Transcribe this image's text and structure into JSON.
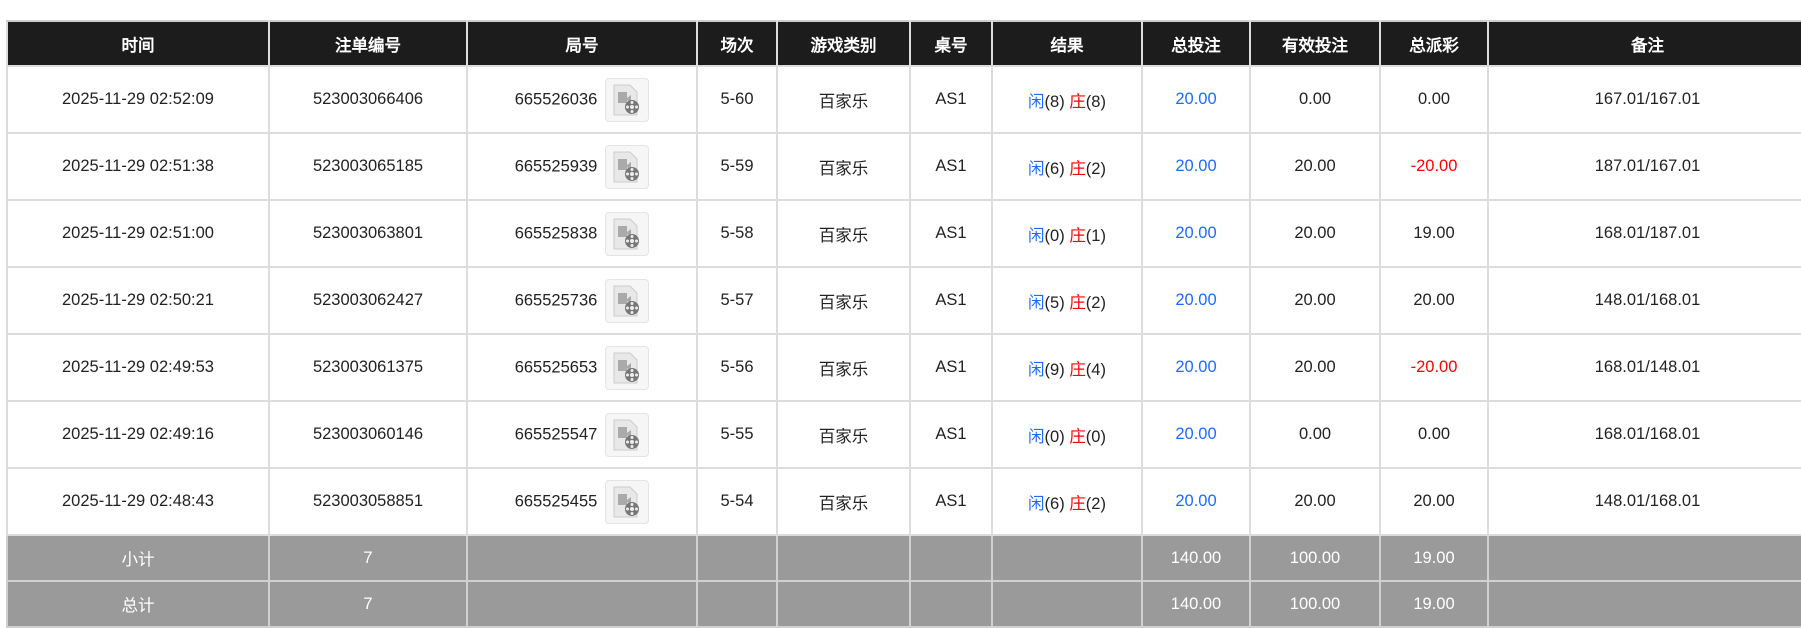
{
  "headers": [
    "时间",
    "注单编号",
    "局号",
    "场次",
    "游戏类别",
    "桌号",
    "结果",
    "总投注",
    "有效投注",
    "总派彩",
    "备注"
  ],
  "colors": {
    "header_bg": "#1c1c1c",
    "player": "#1a6cff",
    "banker": "#ff0000",
    "negative": "#ff0000",
    "summary_bg": "#9a9a9a"
  },
  "rows": [
    {
      "time": "2025-11-29 02:52:09",
      "bet_id": "523003066406",
      "round": "665526036",
      "shoe": "5-60",
      "game": "百家乐",
      "table": "AS1",
      "player_label": "闲",
      "player_score": "(8)",
      "banker_label": "庄",
      "banker_score": "(8)",
      "total_bet": "20.00",
      "valid_bet": "0.00",
      "payout": "0.00",
      "payout_negative": false,
      "remark": "167.01/167.01"
    },
    {
      "time": "2025-11-29 02:51:38",
      "bet_id": "523003065185",
      "round": "665525939",
      "shoe": "5-59",
      "game": "百家乐",
      "table": "AS1",
      "player_label": "闲",
      "player_score": "(6)",
      "banker_label": "庄",
      "banker_score": "(2)",
      "total_bet": "20.00",
      "valid_bet": "20.00",
      "payout": "-20.00",
      "payout_negative": true,
      "remark": "187.01/167.01"
    },
    {
      "time": "2025-11-29 02:51:00",
      "bet_id": "523003063801",
      "round": "665525838",
      "shoe": "5-58",
      "game": "百家乐",
      "table": "AS1",
      "player_label": "闲",
      "player_score": "(0)",
      "banker_label": "庄",
      "banker_score": "(1)",
      "total_bet": "20.00",
      "valid_bet": "20.00",
      "payout": "19.00",
      "payout_negative": false,
      "remark": "168.01/187.01"
    },
    {
      "time": "2025-11-29 02:50:21",
      "bet_id": "523003062427",
      "round": "665525736",
      "shoe": "5-57",
      "game": "百家乐",
      "table": "AS1",
      "player_label": "闲",
      "player_score": "(5)",
      "banker_label": "庄",
      "banker_score": "(2)",
      "total_bet": "20.00",
      "valid_bet": "20.00",
      "payout": "20.00",
      "payout_negative": false,
      "remark": "148.01/168.01"
    },
    {
      "time": "2025-11-29 02:49:53",
      "bet_id": "523003061375",
      "round": "665525653",
      "shoe": "5-56",
      "game": "百家乐",
      "table": "AS1",
      "player_label": "闲",
      "player_score": "(9)",
      "banker_label": "庄",
      "banker_score": "(4)",
      "total_bet": "20.00",
      "valid_bet": "20.00",
      "payout": "-20.00",
      "payout_negative": true,
      "remark": "168.01/148.01"
    },
    {
      "time": "2025-11-29 02:49:16",
      "bet_id": "523003060146",
      "round": "665525547",
      "shoe": "5-55",
      "game": "百家乐",
      "table": "AS1",
      "player_label": "闲",
      "player_score": "(0)",
      "banker_label": "庄",
      "banker_score": "(0)",
      "total_bet": "20.00",
      "valid_bet": "0.00",
      "payout": "0.00",
      "payout_negative": false,
      "remark": "168.01/168.01"
    },
    {
      "time": "2025-11-29 02:48:43",
      "bet_id": "523003058851",
      "round": "665525455",
      "shoe": "5-54",
      "game": "百家乐",
      "table": "AS1",
      "player_label": "闲",
      "player_score": "(6)",
      "banker_label": "庄",
      "banker_score": "(2)",
      "total_bet": "20.00",
      "valid_bet": "20.00",
      "payout": "20.00",
      "payout_negative": false,
      "remark": "148.01/168.01"
    }
  ],
  "summary": [
    {
      "label": "小计",
      "count": "7",
      "total_bet": "140.00",
      "valid_bet": "100.00",
      "payout": "19.00"
    },
    {
      "label": "总计",
      "count": "7",
      "total_bet": "140.00",
      "valid_bet": "100.00",
      "payout": "19.00"
    }
  ],
  "icons": {
    "replay": "video-file-icon"
  }
}
